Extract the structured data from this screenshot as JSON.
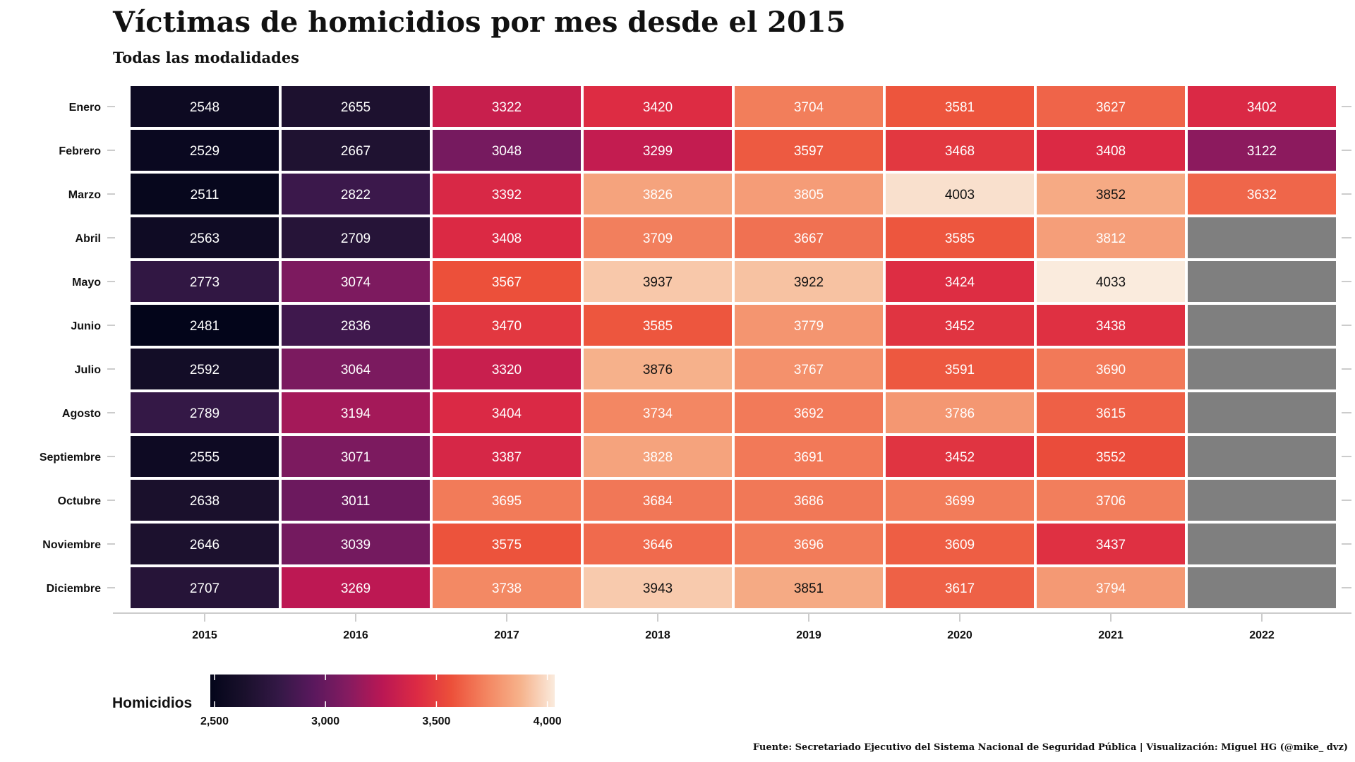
{
  "chart_data": {
    "type": "heatmap",
    "title": "Víctimas de homicidios por mes desde el 2015",
    "subtitle": "Todas las modalidades",
    "x": [
      "2015",
      "2016",
      "2017",
      "2018",
      "2019",
      "2020",
      "2021",
      "2022"
    ],
    "y": [
      "Enero",
      "Febrero",
      "Marzo",
      "Abril",
      "Mayo",
      "Junio",
      "Julio",
      "Agosto",
      "Septiembre",
      "Octubre",
      "Noviembre",
      "Diciembre"
    ],
    "values": [
      [
        2548,
        2655,
        3322,
        3420,
        3704,
        3581,
        3627,
        3402
      ],
      [
        2529,
        2667,
        3048,
        3299,
        3597,
        3468,
        3408,
        3122
      ],
      [
        2511,
        2822,
        3392,
        3826,
        3805,
        4003,
        3852,
        3632
      ],
      [
        2563,
        2709,
        3408,
        3709,
        3667,
        3585,
        3812,
        null
      ],
      [
        2773,
        3074,
        3567,
        3937,
        3922,
        3424,
        4033,
        null
      ],
      [
        2481,
        2836,
        3470,
        3585,
        3779,
        3452,
        3438,
        null
      ],
      [
        2592,
        3064,
        3320,
        3876,
        3767,
        3591,
        3690,
        null
      ],
      [
        2789,
        3194,
        3404,
        3734,
        3692,
        3786,
        3615,
        null
      ],
      [
        2555,
        3071,
        3387,
        3828,
        3691,
        3452,
        3552,
        null
      ],
      [
        2638,
        3011,
        3695,
        3684,
        3686,
        3699,
        3706,
        null
      ],
      [
        2646,
        3039,
        3575,
        3646,
        3696,
        3609,
        3437,
        null
      ],
      [
        2707,
        3269,
        3738,
        3943,
        3851,
        3617,
        3794,
        null
      ]
    ],
    "legend": {
      "title": "Homicidios",
      "ticks": [
        2500,
        3000,
        3500,
        4000
      ],
      "tick_labels": [
        "2,500",
        "3,000",
        "3,500",
        "4,000"
      ],
      "range": [
        2481,
        4033
      ],
      "palette": "rocket",
      "na_color": "#7f7f7f"
    },
    "caption": "Fuente: Secretariado Ejecutivo del Sistema Nacional de Seguridad Pública | Visualización: Miguel HG (@mike_ dvz)"
  }
}
